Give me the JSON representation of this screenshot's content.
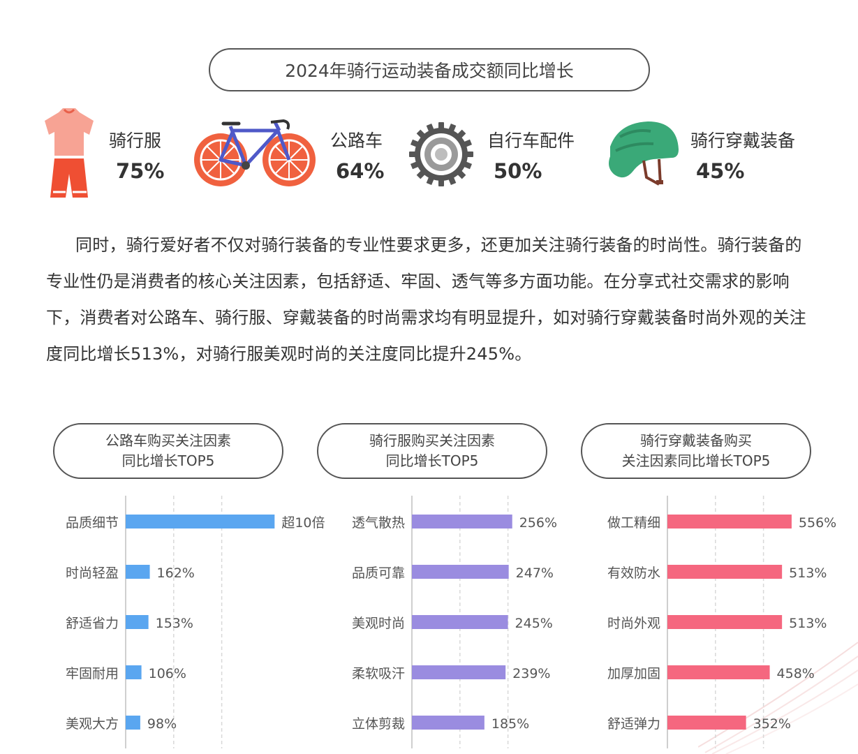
{
  "title": "2024年骑行运动装备成交额同比增长",
  "stats": [
    {
      "label": "骑行服",
      "value": "75%",
      "icon": "jersey-shorts-icon"
    },
    {
      "label": "公路车",
      "value": "64%",
      "icon": "road-bike-icon"
    },
    {
      "label": "自行车配件",
      "value": "50%",
      "icon": "gear-cog-icon"
    },
    {
      "label": "骑行穿戴装备",
      "value": "45%",
      "icon": "helmet-icon"
    }
  ],
  "paragraph": "同时，骑行爱好者不仅对骑行装备的专业性要求更多，还更加关注骑行装备的时尚性。骑行装备的专业性仍是消费者的核心关注因素，包括舒适、牢固、透气等多方面功能。在分享式社交需求的影响下，消费者对公路车、骑行服、穿戴装备的时尚需求均有明显提升，如对骑行穿戴装备时尚外观的关注度同比增长513%，对骑行服美观时尚的关注度同比提升245%。",
  "colors": {
    "blue": "#5aa6f0",
    "purple": "#9a8ce0",
    "red": "#f5677f",
    "jersey": "#f7a394",
    "shorts": "#ef4f33",
    "bike_frame": "#4f59c8",
    "wheel": "#f0613f",
    "helmet": "#3aa978",
    "gear": "#555555"
  },
  "chart_data": [
    {
      "type": "bar",
      "orientation": "horizontal",
      "title_lines": [
        "公路车购买关注因素",
        "同比增长TOP5"
      ],
      "categories": [
        "品质细节",
        "时尚轻盈",
        "舒适省力",
        "牢固耐用",
        "美观大方"
      ],
      "values": [
        1000,
        162,
        153,
        106,
        98
      ],
      "value_labels": [
        "超10倍",
        "162%",
        "153%",
        "106%",
        "98%"
      ],
      "unit": "%",
      "color": "#5aa6f0",
      "xlim": [
        0,
        1500
      ],
      "grid": true
    },
    {
      "type": "bar",
      "orientation": "horizontal",
      "title_lines": [
        "骑行服购买关注因素",
        "同比增长TOP5"
      ],
      "categories": [
        "透气散热",
        "品质可靠",
        "美观时尚",
        "柔软吸汗",
        "立体剪裁"
      ],
      "values": [
        256,
        247,
        245,
        239,
        185
      ],
      "value_labels": [
        "256%",
        "247%",
        "245%",
        "239%",
        "185%"
      ],
      "unit": "%",
      "color": "#9a8ce0",
      "xlim": [
        0,
        570
      ],
      "grid": true
    },
    {
      "type": "bar",
      "orientation": "horizontal",
      "title_lines": [
        "骑行穿戴装备购买",
        "关注因素同比增长TOP5"
      ],
      "categories": [
        "做工精细",
        "有效防水",
        "时尚外观",
        "加厚加固",
        "舒适弹力"
      ],
      "values": [
        556,
        513,
        513,
        458,
        352
      ],
      "value_labels": [
        "556%",
        "513%",
        "513%",
        "458%",
        "352%"
      ],
      "unit": "%",
      "color": "#f5677f",
      "xlim": [
        0,
        1000
      ],
      "grid": true
    }
  ]
}
